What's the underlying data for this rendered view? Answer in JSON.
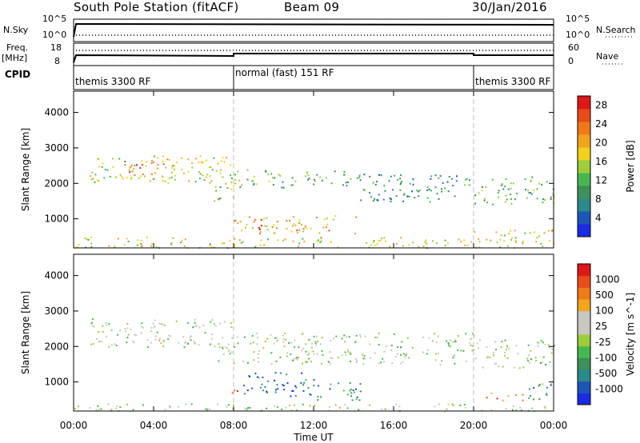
{
  "header": {
    "station": "South Pole Station (fitACF)",
    "beam": "Beam 09",
    "date": "30/Jan/2016"
  },
  "strip": {
    "nsky_label": "N.Sky",
    "freq_label_1": "Freq.",
    "freq_label_2": "[MHz]",
    "cpid_label": "CPID",
    "nsearch_label": "N.Search",
    "nave_label": "Nave",
    "noise_ticks": [
      "10^5",
      "10^0"
    ],
    "freq_ticks": [
      "18",
      "8"
    ],
    "nave_ticks": [
      "60",
      "0"
    ],
    "cpid_segments": [
      {
        "name": "themis 3300 RF",
        "start_hour": 0,
        "end_hour": 8
      },
      {
        "name": "normal (fast) 151 RF",
        "start_hour": 8,
        "end_hour": 20
      },
      {
        "name": "themis 3300 RF",
        "start_hour": 20,
        "end_hour": 24
      }
    ]
  },
  "chart_data": [
    {
      "type": "heatmap",
      "title": "Power",
      "xlabel": "Time UT",
      "ylabel": "Slant Range [km]",
      "x_ticks": [
        "00:00",
        "04:00",
        "08:00",
        "12:00",
        "16:00",
        "20:00",
        "00:00"
      ],
      "x_range_hours": [
        0,
        24
      ],
      "y_ticks": [
        1000,
        2000,
        3000,
        4000
      ],
      "y_range_km": [
        180,
        4600
      ],
      "colorbar": {
        "label": "Power [dB]",
        "ticks": [
          "4",
          "8",
          "12",
          "16",
          "20",
          "24",
          "28"
        ],
        "range": [
          0,
          30
        ],
        "colors": [
          "#1c2be6",
          "#1d56b8",
          "#2a8a8a",
          "#3e8f5a",
          "#46b84e",
          "#9ccd3b",
          "#f2d21d",
          "#f2a41d",
          "#ef7a1a",
          "#e94b1a",
          "#e01818"
        ]
      },
      "scatter_regions": [
        {
          "t0": 0.8,
          "t1": 7.9,
          "r0": 2000,
          "r1": 2800,
          "level": 0.55
        },
        {
          "t0": 2.5,
          "t1": 5.0,
          "r0": 2200,
          "r1": 2700,
          "level": 0.75
        },
        {
          "t0": 7.0,
          "t1": 8.0,
          "r0": 1500,
          "r1": 2200,
          "level": 0.5
        },
        {
          "t0": 8.0,
          "t1": 14.0,
          "r0": 1900,
          "r1": 2400,
          "level": 0.4
        },
        {
          "t0": 14.0,
          "t1": 20.0,
          "r0": 1500,
          "r1": 2300,
          "level": 0.3
        },
        {
          "t0": 20.0,
          "t1": 24.0,
          "r0": 1400,
          "r1": 2200,
          "level": 0.4
        },
        {
          "t0": 8.0,
          "t1": 14.2,
          "r0": 600,
          "r1": 1100,
          "level": 0.65
        },
        {
          "t0": 8.6,
          "t1": 9.6,
          "r0": 700,
          "r1": 1000,
          "level": 0.95
        },
        {
          "t0": 20.0,
          "t1": 24.0,
          "r0": 500,
          "r1": 700,
          "level": 0.6
        },
        {
          "t0": 0.0,
          "t1": 24.0,
          "r0": 190,
          "r1": 500,
          "level": 0.55
        }
      ]
    },
    {
      "type": "heatmap",
      "title": "Velocity",
      "xlabel": "Time UT",
      "ylabel": "Slant Range [km]",
      "x_ticks": [
        "00:00",
        "04:00",
        "08:00",
        "12:00",
        "16:00",
        "20:00",
        "00:00"
      ],
      "x_range_hours": [
        0,
        24
      ],
      "y_ticks": [
        1000,
        2000,
        3000,
        4000
      ],
      "y_range_km": [
        180,
        4600
      ],
      "colorbar": {
        "label": "Velocity [m s^-1]",
        "ticks": [
          "1000",
          "500",
          "100",
          "25",
          "-25",
          "-100",
          "-500",
          "-1000"
        ],
        "colors": [
          "#1c2be6",
          "#1d56b8",
          "#2a8a8a",
          "#3e8f5a",
          "#46b84e",
          "#9ccd3b",
          "#c8c8c0",
          "#c8c8c0",
          "#f2a41d",
          "#ef7a1a",
          "#e94b1a",
          "#e01818"
        ]
      },
      "scatter_regions": [
        {
          "t0": 0.8,
          "t1": 7.9,
          "r0": 2000,
          "r1": 2800,
          "level": 0.5
        },
        {
          "t0": 7.0,
          "t1": 8.0,
          "r0": 1500,
          "r1": 2200,
          "level": 0.5
        },
        {
          "t0": 8.0,
          "t1": 20.0,
          "r0": 1500,
          "r1": 2400,
          "level": 0.5
        },
        {
          "t0": 20.0,
          "t1": 24.0,
          "r0": 1400,
          "r1": 2200,
          "level": 0.5
        },
        {
          "t0": 7.9,
          "t1": 8.4,
          "r0": 600,
          "r1": 900,
          "level": 0.85
        },
        {
          "t0": 8.4,
          "t1": 12.0,
          "r0": 600,
          "r1": 1300,
          "level": 0.2
        },
        {
          "t0": 12.0,
          "t1": 14.5,
          "r0": 500,
          "r1": 1000,
          "level": 0.25
        },
        {
          "t0": 20.0,
          "t1": 22.5,
          "r0": 500,
          "r1": 700,
          "level": 0.85
        },
        {
          "t0": 22.5,
          "t1": 24.0,
          "r0": 500,
          "r1": 1000,
          "level": 0.3
        },
        {
          "t0": 0.0,
          "t1": 24.0,
          "r0": 190,
          "r1": 400,
          "level": 0.5
        }
      ]
    }
  ]
}
